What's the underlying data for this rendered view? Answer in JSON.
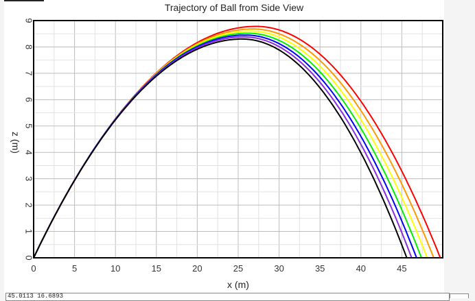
{
  "chart_data": {
    "type": "line",
    "title": "Trajectory of Ball from Side View",
    "xlabel": "x (m)",
    "ylabel": "z (m)",
    "xlim": [
      0,
      50
    ],
    "ylim": [
      0,
      9
    ],
    "xticks": [
      0,
      5,
      10,
      15,
      20,
      25,
      30,
      35,
      40,
      45
    ],
    "yticks": [
      0,
      1,
      2,
      3,
      4,
      5,
      6,
      7,
      8,
      9
    ],
    "grid": true,
    "legend": "none",
    "series": [
      {
        "color": "#ff0000",
        "peak_x": 27.2,
        "peak_z": 8.78,
        "land_x": 49.7
      },
      {
        "color": "#ff9900",
        "peak_x": 26.8,
        "peak_z": 8.68,
        "land_x": 48.9
      },
      {
        "color": "#ffff00",
        "peak_x": 26.5,
        "peak_z": 8.6,
        "land_x": 48.1
      },
      {
        "color": "#00ee00",
        "peak_x": 26.2,
        "peak_z": 8.52,
        "land_x": 47.4
      },
      {
        "color": "#0000ff",
        "peak_x": 25.9,
        "peak_z": 8.45,
        "land_x": 46.8
      },
      {
        "color": "#8a2be2",
        "peak_x": 25.7,
        "peak_z": 8.38,
        "land_x": 46.2
      },
      {
        "color": "#000000",
        "peak_x": 25.5,
        "peak_z": 8.3,
        "land_x": 45.6
      }
    ]
  },
  "readout": {
    "text": "45.0113 16.6893"
  }
}
